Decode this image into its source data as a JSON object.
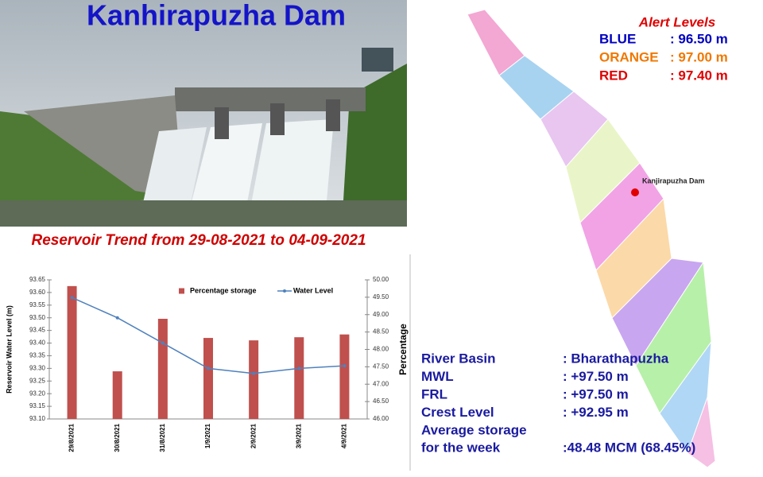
{
  "title": "Kanhirapuzha Dam",
  "subtitle": "Reservoir Trend from 29-08-2021 to 04-09-2021",
  "alert_levels": {
    "title": "Alert Levels",
    "rows": [
      {
        "name": "BLUE",
        "value": ": 96.50 m",
        "color": "#0000c0"
      },
      {
        "name": "ORANGE",
        "value": ": 97.00 m",
        "color": "#f07800"
      },
      {
        "name": "RED",
        "value": ": 97.40 m",
        "color": "#e00000"
      }
    ]
  },
  "map": {
    "marker_label": "Kanjirapuzha Dam"
  },
  "info": {
    "rows": [
      [
        "River Basin",
        ": Bharathapuzha"
      ],
      [
        "MWL",
        ": +97.50 m"
      ],
      [
        "FRL",
        ": +97.50 m"
      ],
      [
        "Crest Level",
        ": +92.95 m"
      ]
    ],
    "storage_label": [
      "Average storage",
      "for the week"
    ],
    "storage_value": ":48.48 MCM (68.45%)"
  },
  "chart_data": {
    "type": "bar",
    "categories": [
      "29/8/2021",
      "30/8/2021",
      "31/8/2021",
      "1/9/2021",
      "2/9/2021",
      "3/9/2021",
      "4/9/2021"
    ],
    "series": [
      {
        "name": "Percentage storage",
        "type": "bar",
        "axis": "y2",
        "color": "#c0504d",
        "values": [
          49.82,
          47.37,
          48.88,
          48.33,
          48.26,
          48.35,
          48.43
        ]
      },
      {
        "name": "Water Level",
        "type": "line",
        "color": "#4f81bd",
        "values": [
          93.58,
          93.5,
          93.4,
          93.3,
          93.28,
          93.3,
          93.31
        ]
      }
    ],
    "y_label": "Reservoir Water Level (m)",
    "y2_label": "Percentage",
    "ylim": [
      93.1,
      93.65
    ],
    "yticks": [
      {
        "value": 93.1,
        "label": "93.10"
      },
      93.15,
      {
        "value": 93.2,
        "label": "93.20"
      },
      93.25,
      {
        "value": 93.3,
        "label": "93.30"
      },
      93.35,
      {
        "value": 93.4,
        "label": "93.40"
      },
      93.45,
      {
        "value": 93.5,
        "label": "93.50"
      },
      93.55,
      {
        "value": 93.6,
        "label": "93.60"
      },
      93.65
    ],
    "y2lim": [
      46,
      50
    ],
    "y2ticks": [
      {
        "value": 46,
        "label": "46.00"
      },
      {
        "value": 46.5,
        "label": "46.50"
      },
      {
        "value": 47,
        "label": "47.00"
      },
      {
        "value": 47.5,
        "label": "47.50"
      },
      {
        "value": 48,
        "label": "48.00"
      },
      {
        "value": 48.5,
        "label": "48.50"
      },
      {
        "value": 49,
        "label": "49.00"
      },
      {
        "value": 49.5,
        "label": "49.50"
      },
      {
        "value": 50,
        "label": "50.00"
      }
    ],
    "grid": false
  }
}
